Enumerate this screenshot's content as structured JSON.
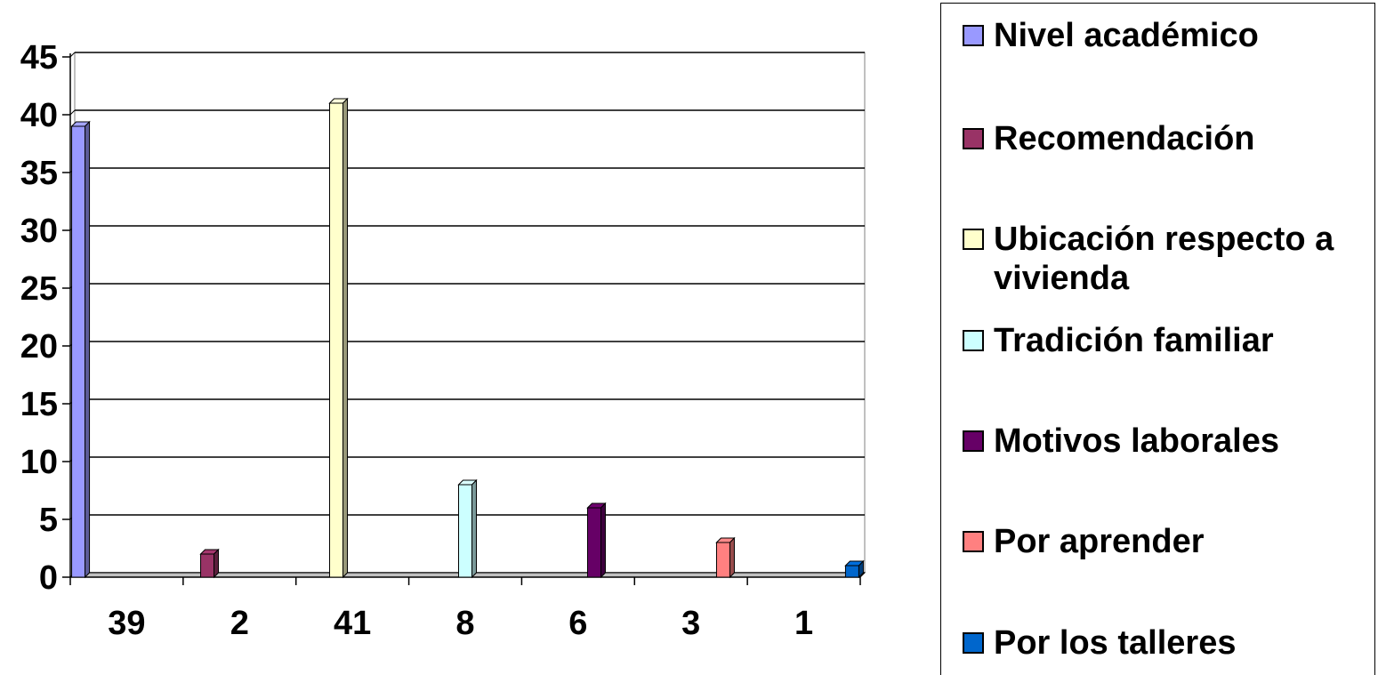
{
  "chart_data": {
    "type": "bar",
    "style": "3d-clustered-column",
    "title": "",
    "xlabel": "",
    "ylabel": "",
    "ylim": [
      0,
      45
    ],
    "yticks": [
      0,
      5,
      10,
      15,
      20,
      25,
      30,
      35,
      40,
      45
    ],
    "grid": "horizontal",
    "legend_position": "right",
    "categories": [
      "39",
      "2",
      "41",
      "8",
      "6",
      "3",
      "1"
    ],
    "series": [
      {
        "name": "Nivel académico",
        "values": [
          39,
          null,
          null,
          null,
          null,
          null,
          null
        ],
        "color": "#9999ff"
      },
      {
        "name": "Recomendación",
        "values": [
          null,
          2,
          null,
          null,
          null,
          null,
          null
        ],
        "color": "#993366"
      },
      {
        "name": "Ubicación respecto a vivienda",
        "values": [
          null,
          null,
          41,
          null,
          null,
          null,
          null
        ],
        "color": "#ffffcc"
      },
      {
        "name": "Tradición familiar",
        "values": [
          null,
          null,
          null,
          8,
          null,
          null,
          null
        ],
        "color": "#ccffff"
      },
      {
        "name": "Motivos laborales",
        "values": [
          null,
          null,
          null,
          null,
          6,
          null,
          null
        ],
        "color": "#660066"
      },
      {
        "name": "Por aprender",
        "values": [
          null,
          null,
          null,
          null,
          null,
          3,
          null
        ],
        "color": "#ff8080"
      },
      {
        "name": "Por los talleres",
        "values": [
          null,
          null,
          null,
          null,
          null,
          null,
          1
        ],
        "color": "#0066cc"
      }
    ]
  },
  "legend": {
    "items": [
      {
        "label": "Nivel académico",
        "color": "#9999ff",
        "icon": "square-swatch"
      },
      {
        "label": "Recomendación",
        "color": "#993366",
        "icon": "square-swatch"
      },
      {
        "label": "Ubicación respecto a vivienda",
        "color": "#ffffcc",
        "icon": "square-swatch"
      },
      {
        "label": "Tradición familiar",
        "color": "#ccffff",
        "icon": "square-swatch"
      },
      {
        "label": "Motivos laborales",
        "color": "#660066",
        "icon": "square-swatch"
      },
      {
        "label": "Por aprender",
        "color": "#ff8080",
        "icon": "square-swatch"
      },
      {
        "label": "Por los talleres",
        "color": "#0066cc",
        "icon": "square-swatch"
      }
    ]
  }
}
